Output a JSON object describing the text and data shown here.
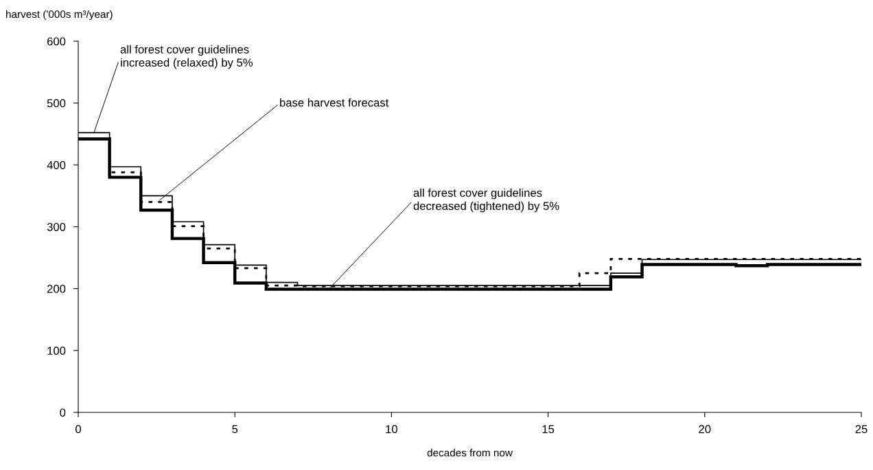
{
  "chart_data": {
    "type": "step",
    "xlabel": "decades from now",
    "ylabel": "harvest ('000s m³/year)",
    "x": [
      0,
      1,
      2,
      3,
      4,
      5,
      6,
      7,
      8,
      9,
      10,
      11,
      12,
      13,
      14,
      15,
      16,
      17,
      18,
      19,
      20,
      21,
      22,
      23,
      24,
      25
    ],
    "series": [
      {
        "color": "#000000",
        "line_style": "solid",
        "values": [
          452,
          397,
          350,
          308,
          271,
          238,
          210,
          205,
          205,
          205,
          205,
          205,
          205,
          205,
          205,
          205,
          205,
          225,
          247,
          247,
          247,
          247,
          247,
          247,
          247,
          247
        ]
      },
      {
        "color": "#000000",
        "line_style": "dotted",
        "values": [
          442,
          388,
          340,
          301,
          265,
          233,
          205,
          204,
          204,
          204,
          204,
          204,
          204,
          204,
          204,
          204,
          225,
          248,
          248,
          248,
          248,
          248,
          248,
          248,
          248,
          248
        ]
      },
      {
        "color": "#000000",
        "line_style": "solid",
        "values": [
          442,
          380,
          327,
          281,
          242,
          209,
          199,
          199,
          199,
          199,
          199,
          199,
          199,
          199,
          199,
          199,
          199,
          219,
          239,
          239,
          239,
          237,
          239,
          239,
          239,
          239
        ]
      }
    ],
    "annotations": [
      {
        "text": "all forest cover guidelines\nincreased (relaxed) by 5%",
        "x": 0.5,
        "y": 452
      },
      {
        "text": "base harvest forecast",
        "x": 2.6,
        "y": 343
      },
      {
        "text": "all forest cover guidelines\ndecreased (tightened) by 5%",
        "x": 8,
        "y": 199
      }
    ],
    "xlim": [
      0,
      25
    ],
    "xticks": [
      0,
      5,
      10,
      15,
      20,
      25
    ],
    "ylim": [
      0,
      600
    ],
    "yticks": [
      0,
      100,
      200,
      300,
      400,
      500,
      600
    ],
    "grid": false,
    "legend": false,
    "marker": "none"
  }
}
